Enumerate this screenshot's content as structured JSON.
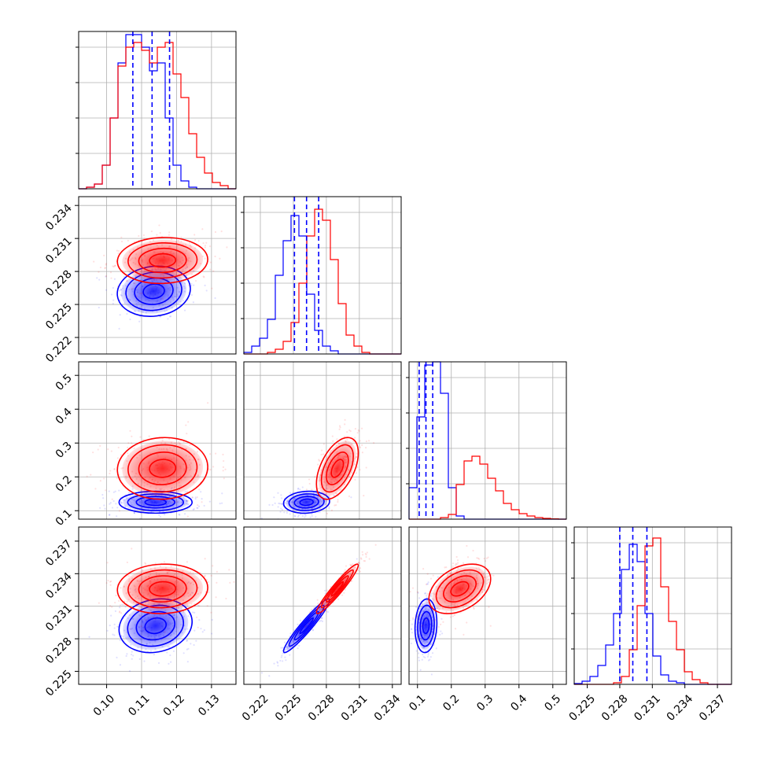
{
  "colors": {
    "blue": "#0000ff",
    "red": "#ff0000",
    "grid": "#b0b0b0",
    "axis": "#000000"
  },
  "chart_data": {
    "type": "corner",
    "grid": true,
    "parameters": [
      {
        "range": [
          0.092,
          0.137
        ],
        "ticks": [
          "0.10",
          "0.11",
          "0.12",
          "0.13"
        ],
        "tick_values": [
          0.1,
          0.11,
          0.12,
          0.13
        ],
        "mode_blue": 0.115,
        "mode_red": 0.118
      },
      {
        "range": [
          0.2205,
          0.2348
        ],
        "ticks": [
          "0.222",
          "0.225",
          "0.228",
          "0.231",
          "0.234"
        ],
        "tick_values": [
          0.222,
          0.225,
          0.228,
          0.231,
          0.234
        ],
        "mode_blue": 0.2262,
        "mode_red": 0.229
      },
      {
        "range": [
          0.075,
          0.54
        ],
        "ticks": [
          "0.1",
          "0.2",
          "0.3",
          "0.4",
          "0.5"
        ],
        "tick_values": [
          0.1,
          0.2,
          0.3,
          0.4,
          0.5
        ],
        "mode_blue": 0.125,
        "mode_red": 0.22
      },
      {
        "range": [
          0.2238,
          0.2383
        ],
        "ticks": [
          "0.225",
          "0.228",
          "0.231",
          "0.234",
          "0.237"
        ],
        "tick_values": [
          0.225,
          0.228,
          0.231,
          0.234,
          0.237
        ],
        "mode_blue": 0.2292,
        "mode_red": 0.2326
      }
    ],
    "series": [
      {
        "color": "blue",
        "quantiles_16_50_84": [
          [
            0.1075,
            0.113,
            0.118
          ],
          [
            0.2251,
            0.2262,
            0.2273
          ],
          [
            0.105,
            0.125,
            0.145
          ],
          [
            0.228,
            0.2292,
            0.2305
          ]
        ]
      },
      {
        "color": "red",
        "quantiles_16_50_84": null
      }
    ],
    "histograms": [
      {
        "blue": [
          0,
          0.01,
          0.03,
          0.15,
          0.45,
          0.8,
          0.98,
          0.98,
          0.9,
          0.75,
          0.8,
          0.45,
          0.15,
          0.05,
          0.01,
          0,
          0,
          0,
          0,
          0
        ],
        "red": [
          0,
          0.01,
          0.03,
          0.15,
          0.45,
          0.78,
          0.9,
          0.93,
          0.88,
          0.8,
          0.9,
          0.93,
          0.73,
          0.58,
          0.35,
          0.2,
          0.1,
          0.04,
          0.02,
          0
        ]
      },
      {
        "blue": [
          0.01,
          0.05,
          0.1,
          0.22,
          0.5,
          0.72,
          0.88,
          0.75,
          0.38,
          0.15,
          0.05,
          0.02,
          0,
          0,
          0,
          0,
          0,
          0,
          0,
          0
        ],
        "red": [
          0,
          0,
          0,
          0.01,
          0.03,
          0.08,
          0.2,
          0.45,
          0.75,
          0.92,
          0.85,
          0.6,
          0.32,
          0.12,
          0.05,
          0.01,
          0,
          0,
          0,
          0
        ],
        "red_y_span": 0.96
      },
      {
        "blue": [
          0.2,
          0.65,
          0.98,
          1.0,
          0.8,
          0.2,
          0.02,
          0,
          0,
          0,
          0,
          0,
          0,
          0,
          0,
          0,
          0,
          0,
          0,
          0
        ],
        "red": [
          0,
          0,
          0,
          0,
          0.01,
          0.03,
          0.22,
          0.37,
          0.4,
          0.35,
          0.26,
          0.18,
          0.1,
          0.06,
          0.035,
          0.02,
          0.01,
          0.005,
          0.002,
          0
        ]
      },
      {
        "blue": [
          0.005,
          0.02,
          0.05,
          0.12,
          0.25,
          0.45,
          0.73,
          0.89,
          0.78,
          0.45,
          0.18,
          0.06,
          0.02,
          0.01,
          0,
          0,
          0,
          0,
          0,
          0
        ],
        "red": [
          0,
          0,
          0,
          0,
          0,
          0.01,
          0.05,
          0.22,
          0.5,
          0.88,
          0.93,
          0.62,
          0.4,
          0.22,
          0.08,
          0.03,
          0.01,
          0,
          0,
          0
        ]
      }
    ],
    "clouds_2d": {
      "1,0": {
        "blue": {
          "center": [
            0.1135,
            0.2262
          ],
          "spread": [
            0.0055,
            0.0012
          ],
          "rho": 0.1
        },
        "red": {
          "center": [
            0.116,
            0.229
          ],
          "spread": [
            0.0068,
            0.0011
          ],
          "rho": 0.05
        }
      },
      "2,0": {
        "blue": {
          "center": [
            0.114,
            0.125
          ],
          "spread": [
            0.0055,
            0.017
          ],
          "rho": 0.0
        },
        "red": {
          "center": [
            0.116,
            0.225
          ],
          "spread": [
            0.0068,
            0.048
          ],
          "rho": 0.05
        }
      },
      "2,1": {
        "blue": {
          "center": [
            0.2262,
            0.125
          ],
          "spread": [
            0.0011,
            0.017
          ],
          "rho": 0.1
        },
        "red": {
          "center": [
            0.229,
            0.225
          ],
          "spread": [
            0.001,
            0.048
          ],
          "rho": 0.5
        }
      },
      "3,0": {
        "blue": {
          "center": [
            0.114,
            0.2292
          ],
          "spread": [
            0.0055,
            0.0013
          ],
          "rho": 0.15
        },
        "red": {
          "center": [
            0.116,
            0.2326
          ],
          "spread": [
            0.0068,
            0.0012
          ],
          "rho": 0.05
        }
      },
      "3,1": {
        "blue": {
          "center": [
            0.2262,
            0.2292
          ],
          "spread": [
            0.0011,
            0.0013
          ],
          "rho": 0.95
        },
        "red": {
          "center": [
            0.229,
            0.2326
          ],
          "spread": [
            0.001,
            0.0012
          ],
          "rho": 0.95
        }
      },
      "3,2": {
        "blue": {
          "center": [
            0.125,
            0.2292
          ],
          "spread": [
            0.017,
            0.0013
          ],
          "rho": 0.1
        },
        "red": {
          "center": [
            0.225,
            0.2326
          ],
          "spread": [
            0.048,
            0.0012
          ],
          "rho": 0.4
        }
      }
    }
  }
}
